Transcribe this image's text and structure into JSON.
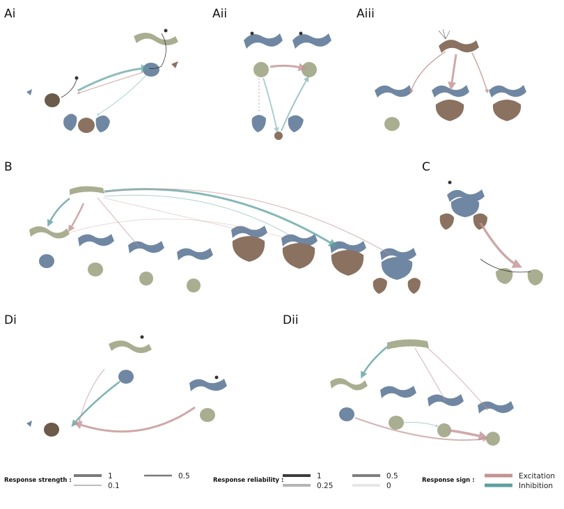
{
  "panels": {
    "ai": "Ai",
    "aii": "Aii",
    "aiii": "Aiii",
    "b": "B",
    "c": "C",
    "di": "Di",
    "dii": "Dii"
  },
  "legend": {
    "strength": {
      "title": "Response strength :",
      "items": [
        "1",
        "0.5",
        "0.1"
      ]
    },
    "reliability": {
      "title": "Response reliability :",
      "items": [
        "1",
        "0.5",
        "0.25",
        "0"
      ]
    },
    "sign": {
      "title": "Response sign :",
      "items": [
        "Excitation",
        "Inhibition"
      ]
    }
  },
  "colors": {
    "excitation": "#c29393",
    "inhibition": "#5e9f9f",
    "glomerulus_green": "#a9ae91",
    "lobe_blue": "#6f87a2",
    "brown": "#8b7160",
    "neuron_line": "#333333"
  }
}
